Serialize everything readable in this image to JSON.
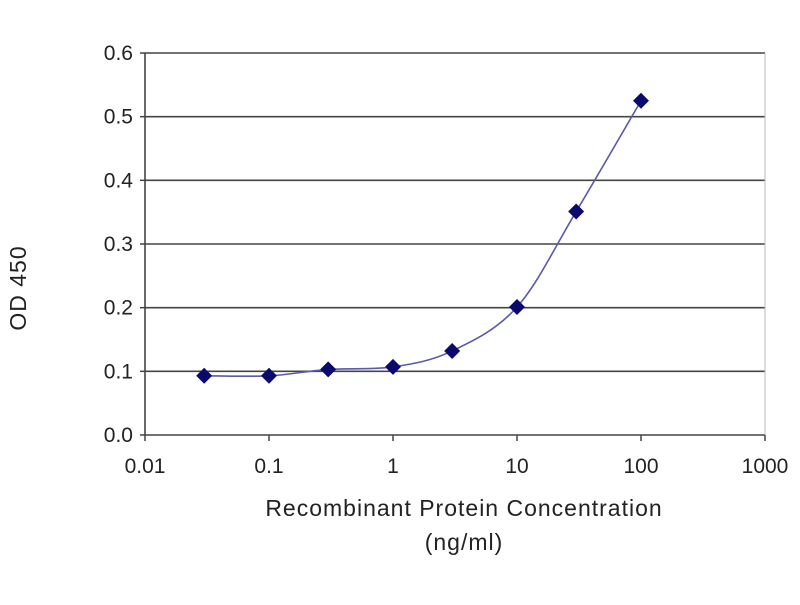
{
  "chart_data": {
    "type": "line",
    "title": "",
    "xlabel": "Recombinant Protein Concentration",
    "xlabel_unit": "(ng/ml)",
    "ylabel": "OD 450",
    "xscale": "log",
    "xlim": [
      0.01,
      1000
    ],
    "ylim": [
      0,
      0.6
    ],
    "grid": "horizontal",
    "x_ticks": [
      "0.01",
      "0.1",
      "1",
      "10",
      "100",
      "1000"
    ],
    "x_tick_values": [
      0.01,
      0.1,
      1,
      10,
      100,
      1000
    ],
    "y_ticks": [
      "0.0",
      "0.1",
      "0.2",
      "0.3",
      "0.4",
      "0.5",
      "0.6"
    ],
    "y_tick_values": [
      0,
      0.1,
      0.2,
      0.3,
      0.4,
      0.5,
      0.6
    ],
    "series": [
      {
        "name": "OD 450",
        "x": [
          0.03,
          0.1,
          0.3,
          1,
          3,
          10,
          30,
          100
        ],
        "y": [
          0.093,
          0.093,
          0.103,
          0.107,
          0.132,
          0.201,
          0.351,
          0.525
        ],
        "line_color": "#5a5aa8",
        "marker_color": "#0a0a6e",
        "marker": "diamond"
      }
    ]
  }
}
